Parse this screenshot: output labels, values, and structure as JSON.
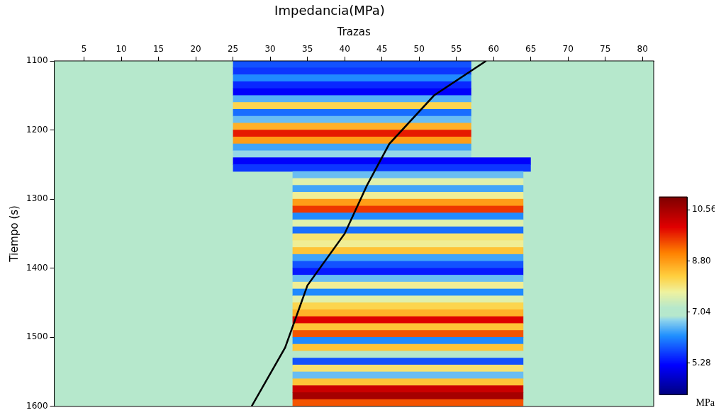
{
  "chart_data": {
    "type": "heatmap",
    "title": "Impedancia(MPa)",
    "x_label": "Trazas",
    "y_label": "Tiempo (s)",
    "xlim": [
      1,
      81.5
    ],
    "xticks": [
      5,
      10,
      15,
      20,
      25,
      30,
      35,
      40,
      45,
      50,
      55,
      60,
      65,
      70,
      75,
      80
    ],
    "ylim": [
      1100,
      1600
    ],
    "yticks": [
      1100,
      1200,
      1300,
      1400,
      1500,
      1600
    ],
    "grid": false,
    "cells": [
      {
        "traces": [
          1,
          81.5
        ],
        "time": [
          1100,
          1600
        ],
        "value": 7.0
      },
      {
        "traces": [
          25,
          57
        ],
        "time": [
          1100,
          1110
        ],
        "value": 5.8
      },
      {
        "traces": [
          25,
          57
        ],
        "time": [
          1110,
          1120
        ],
        "value": 5.6
      },
      {
        "traces": [
          25,
          57
        ],
        "time": [
          1120,
          1130
        ],
        "value": 6.2
      },
      {
        "traces": [
          25,
          57
        ],
        "time": [
          1130,
          1140
        ],
        "value": 5.5
      },
      {
        "traces": [
          25,
          57
        ],
        "time": [
          1140,
          1150
        ],
        "value": 5.2
      },
      {
        "traces": [
          25,
          57
        ],
        "time": [
          1150,
          1160
        ],
        "value": 6.5
      },
      {
        "traces": [
          25,
          57
        ],
        "time": [
          1160,
          1170
        ],
        "value": 8.2
      },
      {
        "traces": [
          25,
          57
        ],
        "time": [
          1170,
          1180
        ],
        "value": 6.0
      },
      {
        "traces": [
          25,
          57
        ],
        "time": [
          1180,
          1190
        ],
        "value": 6.6
      },
      {
        "traces": [
          25,
          57
        ],
        "time": [
          1190,
          1200
        ],
        "value": 8.6
      },
      {
        "traces": [
          25,
          57
        ],
        "time": [
          1200,
          1210
        ],
        "value": 9.8
      },
      {
        "traces": [
          25,
          57
        ],
        "time": [
          1210,
          1220
        ],
        "value": 8.8
      },
      {
        "traces": [
          25,
          57
        ],
        "time": [
          1220,
          1230
        ],
        "value": 6.4
      },
      {
        "traces": [
          25,
          57
        ],
        "time": [
          1230,
          1240
        ],
        "value": 6.8
      },
      {
        "traces": [
          25,
          65
        ],
        "time": [
          1240,
          1250
        ],
        "value": 5.2
      },
      {
        "traces": [
          25,
          65
        ],
        "time": [
          1250,
          1260
        ],
        "value": 5.6
      },
      {
        "traces": [
          33,
          64
        ],
        "time": [
          1260,
          1270
        ],
        "value": 6.6
      },
      {
        "traces": [
          33,
          64
        ],
        "time": [
          1270,
          1280
        ],
        "value": 7.6
      },
      {
        "traces": [
          33,
          64
        ],
        "time": [
          1280,
          1290
        ],
        "value": 6.4
      },
      {
        "traces": [
          33,
          64
        ],
        "time": [
          1290,
          1300
        ],
        "value": 7.8
      },
      {
        "traces": [
          33,
          64
        ],
        "time": [
          1300,
          1310
        ],
        "value": 8.8
      },
      {
        "traces": [
          33,
          64
        ],
        "time": [
          1310,
          1320
        ],
        "value": 9.6
      },
      {
        "traces": [
          33,
          64
        ],
        "time": [
          1320,
          1330
        ],
        "value": 6.2
      },
      {
        "traces": [
          33,
          64
        ],
        "time": [
          1330,
          1340
        ],
        "value": 7.6
      },
      {
        "traces": [
          33,
          64
        ],
        "time": [
          1340,
          1350
        ],
        "value": 6.0
      },
      {
        "traces": [
          33,
          64
        ],
        "time": [
          1350,
          1360
        ],
        "value": 8.0
      },
      {
        "traces": [
          33,
          64
        ],
        "time": [
          1360,
          1370
        ],
        "value": 7.8
      },
      {
        "traces": [
          33,
          64
        ],
        "time": [
          1370,
          1380
        ],
        "value": 8.4
      },
      {
        "traces": [
          33,
          64
        ],
        "time": [
          1380,
          1390
        ],
        "value": 6.4
      },
      {
        "traces": [
          33,
          64
        ],
        "time": [
          1390,
          1400
        ],
        "value": 5.8
      },
      {
        "traces": [
          33,
          64
        ],
        "time": [
          1400,
          1410
        ],
        "value": 5.4
      },
      {
        "traces": [
          33,
          64
        ],
        "time": [
          1410,
          1420
        ],
        "value": 6.6
      },
      {
        "traces": [
          33,
          64
        ],
        "time": [
          1420,
          1430
        ],
        "value": 7.8
      },
      {
        "traces": [
          33,
          64
        ],
        "time": [
          1430,
          1440
        ],
        "value": 6.2
      },
      {
        "traces": [
          33,
          64
        ],
        "time": [
          1440,
          1450
        ],
        "value": 7.6
      },
      {
        "traces": [
          33,
          64
        ],
        "time": [
          1450,
          1460
        ],
        "value": 8.2
      },
      {
        "traces": [
          33,
          64
        ],
        "time": [
          1460,
          1470
        ],
        "value": 8.6
      },
      {
        "traces": [
          33,
          64
        ],
        "time": [
          1470,
          1480
        ],
        "value": 10.0
      },
      {
        "traces": [
          33,
          64
        ],
        "time": [
          1480,
          1490
        ],
        "value": 8.4
      },
      {
        "traces": [
          33,
          64
        ],
        "time": [
          1490,
          1500
        ],
        "value": 9.4
      },
      {
        "traces": [
          33,
          64
        ],
        "time": [
          1500,
          1510
        ],
        "value": 6.2
      },
      {
        "traces": [
          33,
          64
        ],
        "time": [
          1510,
          1520
        ],
        "value": 8.4
      },
      {
        "traces": [
          33,
          64
        ],
        "time": [
          1520,
          1530
        ],
        "value": 7.2
      },
      {
        "traces": [
          33,
          64
        ],
        "time": [
          1530,
          1540
        ],
        "value": 5.8
      },
      {
        "traces": [
          33,
          64
        ],
        "time": [
          1540,
          1550
        ],
        "value": 8.0
      },
      {
        "traces": [
          33,
          64
        ],
        "time": [
          1550,
          1560
        ],
        "value": 6.6
      },
      {
        "traces": [
          33,
          64
        ],
        "time": [
          1560,
          1570
        ],
        "value": 8.4
      },
      {
        "traces": [
          33,
          64
        ],
        "time": [
          1570,
          1580
        ],
        "value": 10.2
      },
      {
        "traces": [
          33,
          64
        ],
        "time": [
          1580,
          1590
        ],
        "value": 10.6
      },
      {
        "traces": [
          33,
          64
        ],
        "time": [
          1590,
          1600
        ],
        "value": 9.4
      }
    ],
    "colorbar": {
      "label": "MPa",
      "range": [
        4.2,
        11.0
      ],
      "ticks": [
        5.28,
        7.04,
        {
          "value": 8.8,
          "label": "8.80"
        },
        10.56
      ]
    },
    "series": [
      {
        "color": "#000000",
        "line_style": "solid",
        "x": [
          59,
          52,
          46,
          43,
          40,
          35,
          32,
          27.5
        ],
        "values": [
          1100,
          1150,
          1220,
          1280,
          1350,
          1425,
          1515,
          1600
        ]
      }
    ]
  }
}
